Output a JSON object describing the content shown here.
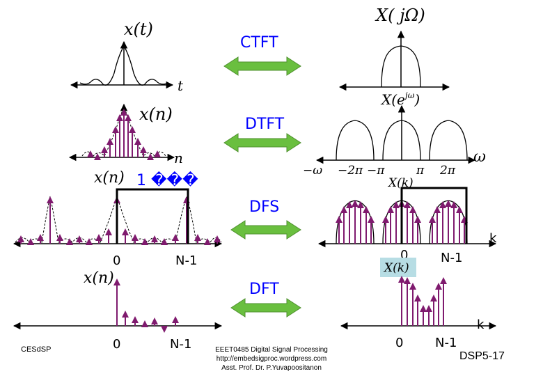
{
  "transforms": {
    "ctft": "CTFT",
    "dtft": "DTFT",
    "dfs": "DFS",
    "dft": "DFT"
  },
  "math_labels": {
    "x_t": "x(t)",
    "t": "t",
    "X_jOmega": "X( jΩ)",
    "x_n": "x(n)",
    "n": "n",
    "X_ejw_base": "X(e",
    "X_ejw_sup": "jω",
    "X_ejw_close": ")",
    "omega": "ω",
    "neg_omega": "−ω",
    "neg_2pi": "−2π",
    "neg_pi": "−π",
    "pi": "π",
    "two_pi": "2π",
    "x_n_periodic": "x(n)",
    "garbled_symbols": "1 ���",
    "X_k": "X(k)",
    "x_n_dft": "x(n)",
    "X_k_dft": "X(k)",
    "k": "k"
  },
  "index_labels": {
    "zero": "0",
    "n_minus_1": "N-1"
  },
  "footer": {
    "left": "CESdSP",
    "course": "EEET0485 Digital Signal Processing",
    "url": "http://embedsigproc.wordpress.com",
    "author": "Asst. Prof. Dr. P.Yuvapoositanon",
    "page": "DSP5-17"
  },
  "colors": {
    "arrow_fill": "#6abf3f",
    "arrow_stroke": "#4e8f2e",
    "stem": "#7f1a6e",
    "axis": "#000000",
    "highlight": "#b7dde4"
  }
}
